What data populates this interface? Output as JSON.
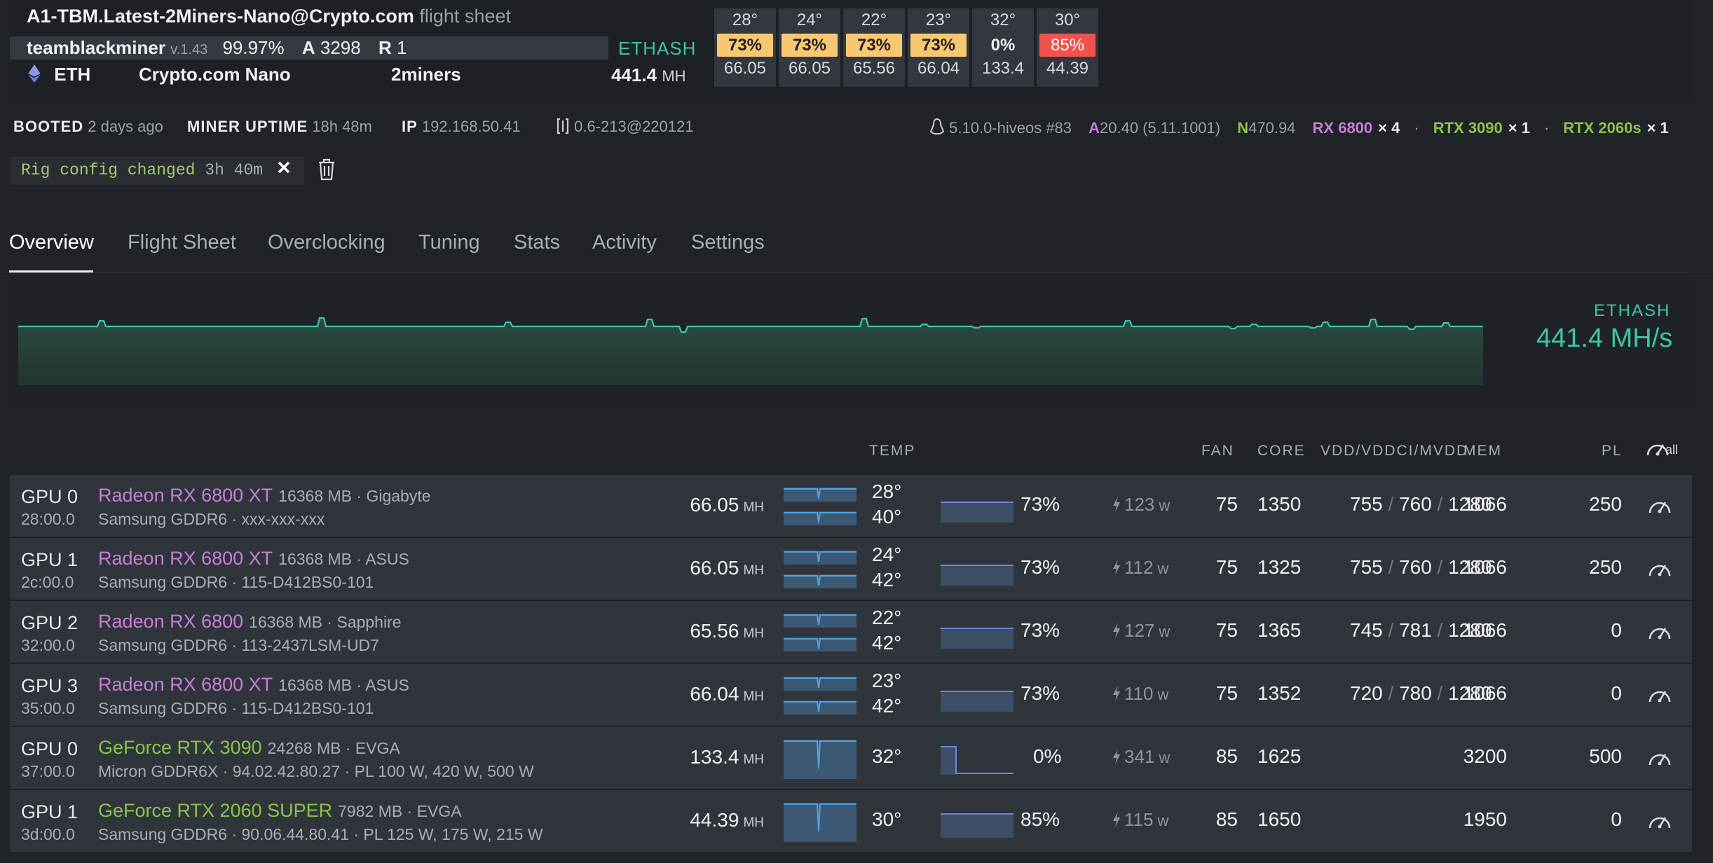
{
  "rig": {
    "name": "A1-TBM.Latest-2Miners-Nano@Crypto.com",
    "suffix": "flight sheet",
    "miner": "teamblackminer",
    "miner_version": "v.1.43",
    "efficiency": "99.97%",
    "accepted_label": "A",
    "accepted": "3298",
    "rejected_label": "R",
    "rejected": "1",
    "coin": "ETH",
    "wallet": "Crypto.com Nano",
    "pool": "2miners",
    "algo": "ETHASH",
    "hashrate": "441.4",
    "hashrate_unit": "MH"
  },
  "gpu_summary": [
    {
      "temp": "28°",
      "fan": "73%",
      "hash": "66.05",
      "fan_color": "#f7c873"
    },
    {
      "temp": "24°",
      "fan": "73%",
      "hash": "66.05",
      "fan_color": "#f7c873"
    },
    {
      "temp": "22°",
      "fan": "73%",
      "hash": "65.56",
      "fan_color": "#f7c873"
    },
    {
      "temp": "23°",
      "fan": "73%",
      "hash": "66.04",
      "fan_color": "#f7c873"
    },
    {
      "temp": "32°",
      "fan": "0%",
      "hash": "133.4",
      "fan_color": "#33383e"
    },
    {
      "temp": "30°",
      "fan": "85%",
      "hash": "44.39",
      "fan_color": "#ef5350"
    }
  ],
  "info": {
    "booted_label": "BOOTED",
    "booted": "2 days ago",
    "uptime_label": "MINER UPTIME",
    "uptime": "18h 48m",
    "ip_label": "IP",
    "ip": "192.168.50.41",
    "version": "0.6-213@220121",
    "kernel": "5.10.0-hiveos #83",
    "amd_label": "A",
    "amd_driver": "20.40 (5.11.1001)",
    "nv_label": "N",
    "nv_driver": "470.94",
    "gpu_groups": [
      {
        "model": "RX 6800",
        "count": "× 4",
        "color": "#c77dd6"
      },
      {
        "model": "RTX 3090",
        "count": "× 1",
        "color": "#8bc34a"
      },
      {
        "model": "RTX 2060s",
        "count": "× 1",
        "color": "#8bc34a"
      }
    ],
    "sep": "·"
  },
  "notice": {
    "text": "Rig config changed",
    "time": "3h 40m"
  },
  "tabs": [
    "Overview",
    "Flight Sheet",
    "Overclocking",
    "Tuning",
    "Stats",
    "Activity",
    "Settings"
  ],
  "chart_summary": {
    "algo": "ETHASH",
    "value": "441.4 MH/s"
  },
  "columns": {
    "temp": "TEMP",
    "fan": "FAN",
    "core": "CORE",
    "vdd": "VDD/VDDCI/MVDD",
    "mem": "MEM",
    "pl": "PL",
    "all": "all"
  },
  "gpus": [
    {
      "name": "GPU 0",
      "bus": "28:00.0",
      "model": "Radeon RX 6800 XT",
      "vram": "16368 MB · Gigabyte",
      "memory": "Samsung GDDR6 · xxx-xxx-xxx",
      "hashrate": "66.05",
      "unit": "MH",
      "temp": "28°",
      "mem_temp": "40°",
      "fan": "73%",
      "fan_level": 0.73,
      "power": "123",
      "power_unit": "w",
      "fan_set": "75",
      "core": "1350",
      "vdd": "755",
      "vddci": "760",
      "mvdd": "1280",
      "mem_clock": "1066",
      "pl": "250",
      "vendor": "amd"
    },
    {
      "name": "GPU 1",
      "bus": "2c:00.0",
      "model": "Radeon RX 6800 XT",
      "vram": "16368 MB · ASUS",
      "memory": "Samsung GDDR6 · 115-D412BS0-101",
      "hashrate": "66.05",
      "unit": "MH",
      "temp": "24°",
      "mem_temp": "42°",
      "fan": "73%",
      "fan_level": 0.73,
      "power": "112",
      "power_unit": "w",
      "fan_set": "75",
      "core": "1325",
      "vdd": "755",
      "vddci": "760",
      "mvdd": "1280",
      "mem_clock": "1066",
      "pl": "250",
      "vendor": "amd"
    },
    {
      "name": "GPU 2",
      "bus": "32:00.0",
      "model": "Radeon RX 6800",
      "vram": "16368 MB · Sapphire",
      "memory": "Samsung GDDR6 · 113-2437LSM-UD7",
      "hashrate": "65.56",
      "unit": "MH",
      "temp": "22°",
      "mem_temp": "42°",
      "fan": "73%",
      "fan_level": 0.73,
      "power": "127",
      "power_unit": "w",
      "fan_set": "75",
      "core": "1365",
      "vdd": "745",
      "vddci": "781",
      "mvdd": "1280",
      "mem_clock": "1066",
      "pl": "0",
      "vendor": "amd"
    },
    {
      "name": "GPU 3",
      "bus": "35:00.0",
      "model": "Radeon RX 6800 XT",
      "vram": "16368 MB · ASUS",
      "memory": "Samsung GDDR6 · 115-D412BS0-101",
      "hashrate": "66.04",
      "unit": "MH",
      "temp": "23°",
      "mem_temp": "42°",
      "fan": "73%",
      "fan_level": 0.73,
      "power": "110",
      "power_unit": "w",
      "fan_set": "75",
      "core": "1352",
      "vdd": "720",
      "vddci": "780",
      "mvdd": "1280",
      "mem_clock": "1066",
      "pl": "0",
      "vendor": "amd"
    },
    {
      "name": "GPU 0",
      "bus": "37:00.0",
      "model": "GeForce RTX 3090",
      "vram": "24268 MB · EVGA",
      "memory": "Micron GDDR6X · 94.02.42.80.27 · PL 100 W, 420 W, 500 W",
      "hashrate": "133.4",
      "unit": "MH",
      "temp": "32°",
      "mem_temp": "",
      "fan": "0%",
      "fan_level": 0.0,
      "power": "341",
      "power_unit": "w",
      "fan_set": "85",
      "core": "1625",
      "vdd": "",
      "vddci": "",
      "mvdd": "",
      "mem_clock": "3200",
      "pl": "500",
      "vendor": "nvidia"
    },
    {
      "name": "GPU 1",
      "bus": "3d:00.0",
      "model": "GeForce RTX 2060 SUPER",
      "vram": "7982 MB · EVGA",
      "memory": "Samsung GDDR6 · 90.06.44.80.41 · PL 125 W, 175 W, 215 W",
      "hashrate": "44.39",
      "unit": "MH",
      "temp": "30°",
      "mem_temp": "",
      "fan": "85%",
      "fan_level": 0.85,
      "power": "115",
      "power_unit": "w",
      "fan_set": "85",
      "core": "1650",
      "vdd": "",
      "vddci": "",
      "mvdd": "",
      "mem_clock": "1950",
      "pl": "0",
      "vendor": "nvidia"
    }
  ],
  "colors": {
    "accent": "#3ec6a5",
    "amd": "#c77dd6",
    "nvidia": "#8bc34a",
    "warn": "#f7c873",
    "danger": "#ef5350"
  }
}
